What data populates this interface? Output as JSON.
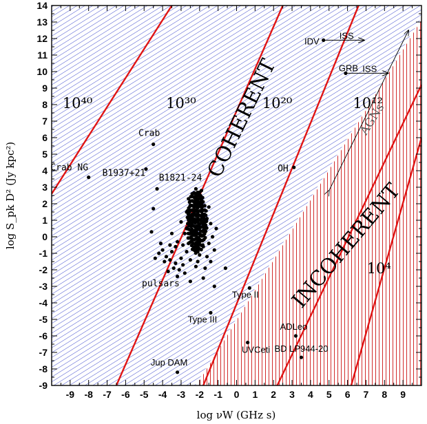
{
  "chart_data": {
    "type": "scatter",
    "xlabel": "log νW (GHz s)",
    "ylabel": "log S_pk D² (Jy kpc²)",
    "xlim": [
      -10,
      10
    ],
    "ylim": [
      -9,
      14
    ],
    "x_ticks": [
      "-9",
      "-8",
      "-7",
      "-6",
      "-5",
      "-4",
      "-3",
      "-2",
      "-1",
      "0",
      "1",
      "2",
      "3",
      "4",
      "5",
      "6",
      "7",
      "8",
      "9"
    ],
    "y_ticks": [
      "14",
      "13",
      "12",
      "11",
      "10",
      "9",
      "8",
      "7",
      "6",
      "5",
      "4",
      "3",
      "2",
      "1",
      "0",
      "-1",
      "-2",
      "-3",
      "-4",
      "-5",
      "-6",
      "-7",
      "-8",
      "-9"
    ],
    "boundary": {
      "x": [
        -2.2,
        10
      ],
      "y": [
        -9,
        13.2
      ]
    },
    "brightness_lines": [
      {
        "label": "10⁴⁰",
        "x": [
          -10,
          -3.5
        ],
        "y": [
          2.6,
          14
        ]
      },
      {
        "label": "10³⁰",
        "x": [
          -6.5,
          2.5
        ],
        "y": [
          -9,
          14
        ]
      },
      {
        "label": "10²⁰",
        "x": [
          -1.8,
          6.6
        ],
        "y": [
          -9,
          14
        ]
      },
      {
        "label": "10¹²",
        "x": [
          2.2,
          10
        ],
        "y": [
          -9,
          9.2
        ]
      },
      {
        "label": "10⁴",
        "x": [
          6.2,
          10
        ],
        "y": [
          -9,
          6.0
        ]
      }
    ],
    "line_labels": [
      {
        "text": "10⁴⁰",
        "x": -8.6,
        "y": 7.8
      },
      {
        "text": "10³⁰",
        "x": -3.0,
        "y": 7.8
      },
      {
        "text": "10²⁰",
        "x": 2.2,
        "y": 7.8
      },
      {
        "text": "10¹²",
        "x": 7.1,
        "y": 7.8
      },
      {
        "text": "10⁴",
        "x": 7.7,
        "y": -2.2
      }
    ],
    "region_labels": [
      {
        "text": "COHERENT",
        "x": 0.6,
        "y": 7.0,
        "angle": -64
      },
      {
        "text": "INCOHERENT",
        "x": 6.2,
        "y": -0.8,
        "angle": -50
      },
      {
        "text": "AGNs",
        "x": 7.5,
        "y": 7.0,
        "angle": -58
      }
    ],
    "agn_arrow": {
      "from": [
        5.0,
        2.8
      ],
      "to": [
        9.3,
        12.5
      ]
    },
    "labeled_points": [
      {
        "label": "Crab NG",
        "x": -8.0,
        "y": 3.6
      },
      {
        "label": "Crab",
        "x": -4.5,
        "y": 5.6
      },
      {
        "label": "B1937+21",
        "x": -4.9,
        "y": 4.1
      },
      {
        "label": "B1821-24",
        "x": -4.3,
        "y": 2.9
      },
      {
        "label": "IDV",
        "x": 4.7,
        "y": 11.9
      },
      {
        "label": "GRB",
        "x": 5.9,
        "y": 9.9
      },
      {
        "label": "OH",
        "x": 3.1,
        "y": 4.2
      },
      {
        "label": "Type II",
        "x": 0.7,
        "y": -3.1
      },
      {
        "label": "Type III",
        "x": -1.4,
        "y": -4.6
      },
      {
        "label": "ADLeo",
        "x": 3.2,
        "y": -6.0
      },
      {
        "label": "UVCeti",
        "x": 0.6,
        "y": -6.4
      },
      {
        "label": "BD LP944-20",
        "x": 3.5,
        "y": -7.3
      },
      {
        "label": "Jup DAM",
        "x": -3.2,
        "y": -8.2
      }
    ],
    "iss_arrows": [
      {
        "label": "ISS",
        "from": [
          4.7,
          11.9
        ],
        "to": [
          6.9,
          11.9
        ]
      },
      {
        "label": "ISS",
        "from": [
          5.9,
          9.9
        ],
        "to": [
          8.2,
          9.9
        ]
      }
    ],
    "pulsars": {
      "label": "pulsars",
      "points": [
        [
          -2.2,
          0.5
        ],
        [
          -2.4,
          1.2
        ],
        [
          -2.0,
          -0.3
        ],
        [
          -2.6,
          0.8
        ],
        [
          -1.9,
          1.6
        ],
        [
          -2.3,
          -0.8
        ],
        [
          -2.8,
          0.2
        ],
        [
          -2.1,
          2.2
        ],
        [
          -2.5,
          -1.4
        ],
        [
          -1.7,
          0.3
        ],
        [
          -2.2,
          1.9
        ],
        [
          -2.7,
          1.5
        ],
        [
          -2.0,
          -1.1
        ],
        [
          -2.4,
          2.6
        ],
        [
          -1.8,
          -0.6
        ],
        [
          -3.0,
          0.9
        ],
        [
          -2.3,
          0.1
        ],
        [
          -1.6,
          1.1
        ],
        [
          -2.9,
          -0.5
        ],
        [
          -2.2,
          -1.8
        ],
        [
          -2.6,
          2.3
        ],
        [
          -1.9,
          2.8
        ],
        [
          -2.5,
          0.4
        ],
        [
          -2.1,
          0.9
        ],
        [
          -2.3,
          1.5
        ],
        [
          -2.0,
          0.6
        ],
        [
          -2.4,
          -0.2
        ],
        [
          -1.8,
          1.3
        ],
        [
          -2.7,
          -0.9
        ],
        [
          -2.2,
          2.9
        ],
        [
          -3.2,
          -0.3
        ],
        [
          -3.5,
          -0.9
        ],
        [
          -3.8,
          -1.2
        ],
        [
          -3.3,
          -1.6
        ],
        [
          -3.6,
          -0.5
        ],
        [
          -4.0,
          -0.8
        ],
        [
          -3.1,
          -2.0
        ],
        [
          -3.4,
          -1.9
        ],
        [
          -3.9,
          -1.5
        ],
        [
          -4.2,
          -1.0
        ],
        [
          -3.7,
          -2.1
        ],
        [
          -3.0,
          -1.3
        ],
        [
          -3.5,
          0.2
        ],
        [
          -4.1,
          -0.4
        ],
        [
          -3.2,
          -2.4
        ],
        [
          -2.9,
          -1.7
        ],
        [
          -3.6,
          -1.4
        ],
        [
          -2.8,
          -2.2
        ],
        [
          -3.3,
          -0.6
        ],
        [
          -4.4,
          -1.3
        ],
        [
          -1.5,
          -0.4
        ],
        [
          -1.4,
          0.8
        ],
        [
          -1.6,
          -1.2
        ],
        [
          -1.3,
          0.0
        ],
        [
          -1.7,
          -1.9
        ],
        [
          -1.2,
          -0.8
        ],
        [
          -1.5,
          1.8
        ],
        [
          -1.8,
          -2.5
        ],
        [
          -1.1,
          0.5
        ],
        [
          -1.4,
          -1.5
        ],
        [
          -4.6,
          0.3
        ],
        [
          -4.5,
          1.7
        ],
        [
          -0.6,
          -1.9
        ],
        [
          -1.2,
          -3.0
        ],
        [
          -2.5,
          -2.7
        ],
        [
          -2.1,
          -1.5
        ],
        [
          -2.6,
          -0.4
        ],
        [
          -2.0,
          1.3
        ],
        [
          -2.3,
          0.3
        ],
        [
          -2.5,
          1.9
        ],
        [
          -1.9,
          0.1
        ],
        [
          -2.2,
          -0.5
        ],
        [
          -2.4,
          0.7
        ],
        [
          -2.0,
          2.0
        ],
        [
          -2.7,
          0.5
        ],
        [
          -2.1,
          -0.1
        ],
        [
          -1.8,
          0.8
        ],
        [
          -2.3,
          2.4
        ],
        [
          -2.5,
          1.0
        ],
        [
          -2.2,
          1.0
        ]
      ]
    }
  }
}
